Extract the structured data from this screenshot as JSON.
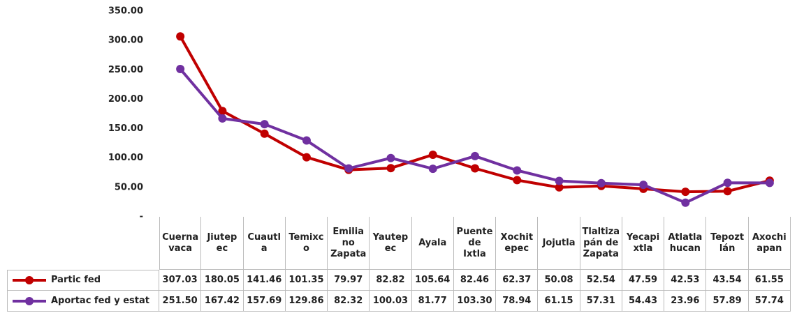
{
  "chart_data": {
    "type": "line",
    "categories": [
      "Cuerna\nvaca",
      "Jiutep\nec",
      "Cuautl\na",
      "Temixc\no",
      "Emilia\nno\nZapata",
      "Yautep\nec",
      "Ayala",
      "Puente\nde\nIxtla",
      "Xochit\nepec",
      "Jojutla",
      "Tlaltiza\npán de\nZapata",
      "Yecapi\nxtla",
      "Atlatla\nhucan",
      "Tepozt\nlán",
      "Axochi\napan"
    ],
    "series": [
      {
        "name": "Partic fed",
        "color": "#c00000",
        "values": [
          307.03,
          180.05,
          141.46,
          101.35,
          79.97,
          82.82,
          105.64,
          82.46,
          62.37,
          50.08,
          52.54,
          47.59,
          42.53,
          43.54,
          61.55
        ],
        "value_labels": [
          "307.03",
          "180.05",
          "141.46",
          "101.35",
          "79.97",
          "82.82",
          "105.64",
          "82.46",
          "62.37",
          "50.08",
          "52.54",
          "47.59",
          "42.53",
          "43.54",
          "61.55"
        ]
      },
      {
        "name": "Aportac fed y estat",
        "color": "#7030a0",
        "values": [
          251.5,
          167.42,
          157.69,
          129.86,
          82.32,
          100.03,
          81.77,
          103.3,
          78.94,
          61.15,
          57.31,
          54.43,
          23.96,
          57.89,
          57.74
        ],
        "value_labels": [
          "251.50",
          "167.42",
          "157.69",
          "129.86",
          "82.32",
          "100.03",
          "81.77",
          "103.30",
          "78.94",
          "61.15",
          "57.31",
          "54.43",
          "23.96",
          "57.89",
          "57.74"
        ]
      }
    ],
    "ylim": [
      0,
      350
    ],
    "yticks": [
      {
        "value": 0,
        "label": "-"
      },
      {
        "value": 50,
        "label": "50.00"
      },
      {
        "value": 100,
        "label": "100.00"
      },
      {
        "value": 150,
        "label": "150.00"
      },
      {
        "value": 200,
        "label": "200.00"
      },
      {
        "value": 250,
        "label": "250.00"
      },
      {
        "value": 300,
        "label": "300.00"
      },
      {
        "value": 350,
        "label": "350.00"
      }
    ],
    "grid": false
  }
}
